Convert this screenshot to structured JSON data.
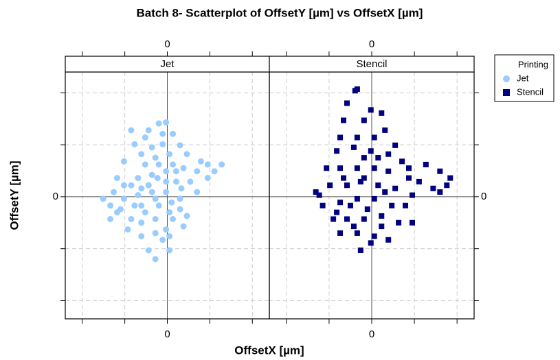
{
  "chart_data": {
    "type": "scatter",
    "title": "Batch 8- Scatterplot of OffsetY [µm] vs OffsetX [µm]",
    "x_label": "OffsetX [µm]",
    "y_label": "OffsetY [µm]",
    "legend_title": "Printing",
    "legend": "right",
    "grid": true,
    "xlim": [
      -2.4,
      2.4
    ],
    "ylim": [
      -2.35,
      2.4
    ],
    "xticks": [
      {
        "value": -2,
        "label": null
      },
      {
        "value": -1,
        "label": null
      },
      0,
      {
        "value": 1,
        "label": null
      },
      {
        "value": 2,
        "label": null
      }
    ],
    "yticks": [
      {
        "value": -2,
        "label": null
      },
      {
        "value": -1,
        "label": null
      },
      0,
      {
        "value": 1,
        "label": null
      },
      {
        "value": 2,
        "label": null
      }
    ],
    "series": [
      {
        "name": "Jet",
        "color": "#99ccff",
        "marker": "circle",
        "x": [
          -0.2,
          -0.03,
          -0.44,
          0.13,
          -0.85,
          -0.77,
          0.3,
          -0.61,
          -0.28,
          0.05,
          0.46,
          0.79,
          0.95,
          1.28,
          1.11,
          0.7,
          0.38,
          -1.02,
          -1.18,
          -0.69,
          -0.36,
          -0.03,
          0.21,
          0.54,
          -1.26,
          -1.51,
          -1.34,
          -1.02,
          -0.69,
          -0.36,
          -0.03,
          0.3,
          -0.2,
          -0.52,
          -0.85,
          -1.34,
          0.13,
          0.46,
          -0.93,
          -0.61,
          -0.28,
          0.05,
          -0.11,
          -0.44,
          -0.28,
          -0.03,
          0.3,
          -1.1,
          -0.77,
          -0.11,
          -0.52,
          -0.23,
          0.1,
          -0.61,
          0.33,
          -0.2,
          0.13,
          -0.52,
          -0.85,
          -0.44,
          -0.03,
          -0.28,
          -0.61,
          0.05,
          -0.28,
          -0.61,
          0.38,
          0.7,
          0.95,
          -1.02,
          -0.11,
          -0.36,
          0.21,
          -1.18,
          0.05
        ],
        "values": [
          1.41,
          1.43,
          1.28,
          1.21,
          1.28,
          1.01,
          0.99,
          0.82,
          0.75,
          0.82,
          0.82,
          0.68,
          0.62,
          0.62,
          0.49,
          0.49,
          0.55,
          0.68,
          0.36,
          0.36,
          0.42,
          0.49,
          0.29,
          0.29,
          0.09,
          -0.04,
          -0.17,
          -0.04,
          0.03,
          0.09,
          0.09,
          -0.04,
          -0.17,
          -0.3,
          -0.43,
          -0.43,
          -0.43,
          -0.37,
          -0.63,
          -0.76,
          -0.7,
          -0.76,
          -0.83,
          -1.03,
          -1.2,
          -0.63,
          -0.24,
          -0.24,
          -0.17,
          1.01,
          1.14,
          0.36,
          -0.11,
          0.16,
          0.16,
          0.62,
          0.62,
          0.62,
          0.22,
          0.22,
          0.29,
          -0.04,
          -0.17,
          -0.3,
          -0.43,
          -0.5,
          -0.57,
          0.09,
          0.36,
          0.22,
          1.21,
          0.95,
          0.49,
          -0.3,
          -1.03
        ]
      },
      {
        "name": "Stencil",
        "color": "#000080",
        "marker": "square",
        "x": [
          -0.39,
          -0.34,
          -0.58,
          -0.02,
          0.23,
          -0.66,
          -0.18,
          0.31,
          -0.74,
          -0.34,
          0.06,
          0.55,
          -0.82,
          -0.42,
          -0.02,
          0.39,
          0.71,
          0.87,
          1.27,
          1.6,
          1.84,
          1.76,
          1.44,
          1.11,
          0.95,
          0.87,
          -1.06,
          -0.74,
          -0.34,
          0.06,
          0.39,
          -1.31,
          -0.98,
          -0.58,
          -0.26,
          0.15,
          0.55,
          -1.15,
          -0.74,
          -0.34,
          0.06,
          0.47,
          0.79,
          -0.9,
          -0.58,
          -0.18,
          0.23,
          0.63,
          0.95,
          -0.74,
          -0.34,
          0.06,
          0.39,
          -0.26,
          -0.02,
          -1.23,
          1.6,
          -0.66,
          -0.18,
          0.15,
          -0.5,
          -0.1,
          0.31,
          -0.82,
          -0.18,
          -0.42,
          0.23
        ],
        "values": [
          2.04,
          2.07,
          1.8,
          1.67,
          1.61,
          1.47,
          1.47,
          1.28,
          1.14,
          1.14,
          1.14,
          0.99,
          0.88,
          0.95,
          0.88,
          0.82,
          0.68,
          0.55,
          0.62,
          0.49,
          0.36,
          0.22,
          0.16,
          0.29,
          0.03,
          0.36,
          0.55,
          0.55,
          0.55,
          0.55,
          0.49,
          0.09,
          0.22,
          0.22,
          0.29,
          0.22,
          0.16,
          -0.17,
          -0.11,
          -0.04,
          -0.04,
          -0.17,
          -0.17,
          -0.43,
          -0.43,
          -0.43,
          -0.37,
          -0.5,
          -0.5,
          -0.7,
          -0.7,
          -0.76,
          -0.83,
          -1.03,
          -0.89,
          0.03,
          0.09,
          0.36,
          0.75,
          0.75,
          -0.17,
          -0.24,
          0.09,
          -0.3,
          0.36,
          -0.57,
          -0.57
        ]
      }
    ]
  }
}
